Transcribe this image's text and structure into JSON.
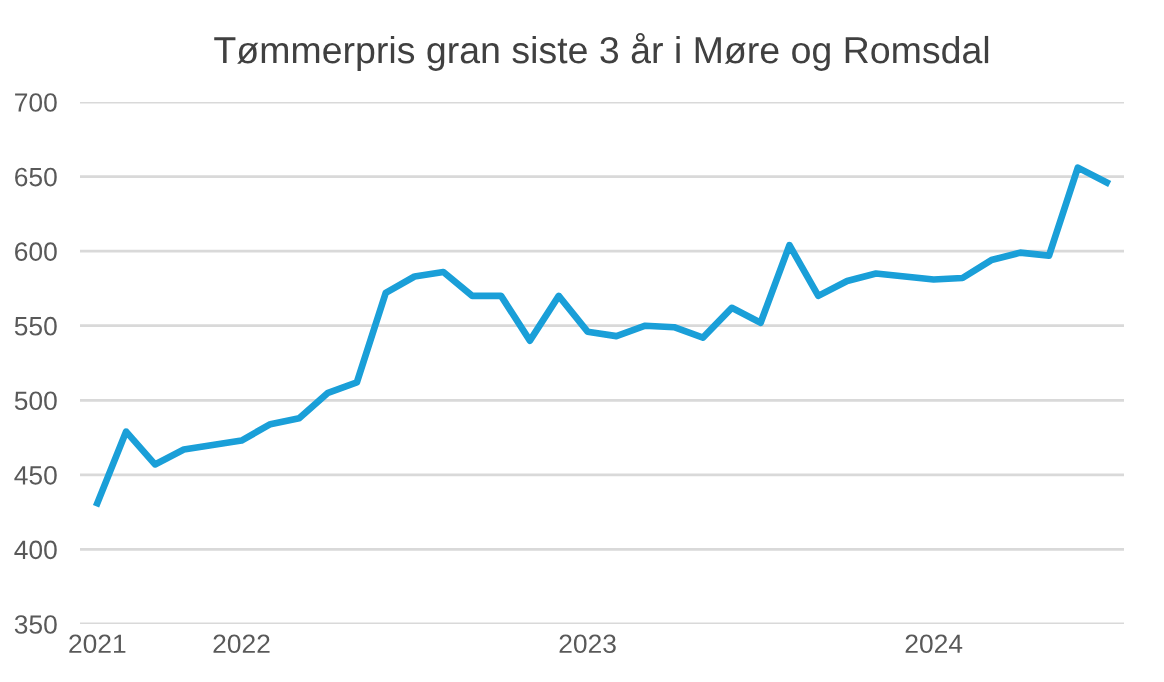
{
  "chart_data": {
    "type": "line",
    "title": "Tømmerpris gran siste 3 år i Møre og Romsdal",
    "categories": [
      "2021",
      null,
      null,
      null,
      null,
      "2022",
      null,
      null,
      null,
      null,
      null,
      null,
      null,
      null,
      null,
      null,
      null,
      "2023",
      null,
      null,
      null,
      null,
      null,
      null,
      null,
      null,
      null,
      null,
      null,
      "2024",
      null,
      null,
      null,
      null,
      null,
      null
    ],
    "series": [
      {
        "color": "#1a9fd8",
        "values": [
          431,
          479,
          457,
          467,
          470,
          473,
          484,
          488,
          505,
          512,
          572,
          583,
          586,
          570,
          570,
          540,
          570,
          546,
          543,
          550,
          549,
          542,
          562,
          552,
          604,
          570,
          580,
          585,
          583,
          581,
          582,
          594,
          599,
          597,
          656,
          646
        ]
      }
    ],
    "ylim": [
      350,
      700
    ],
    "yticks": [
      350,
      400,
      450,
      500,
      550,
      600,
      650,
      700
    ],
    "grid": "y",
    "legend": false,
    "marker": "none",
    "line_style": "solid"
  }
}
